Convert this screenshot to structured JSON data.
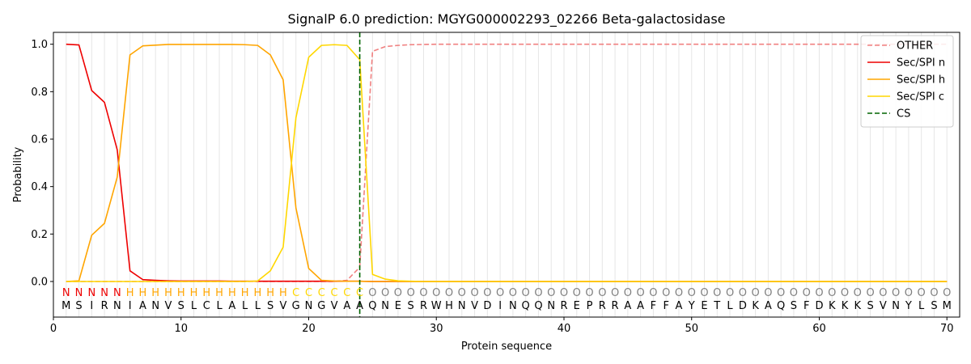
{
  "chart_data": {
    "type": "line",
    "title": "SignalP 6.0 prediction: MGYG000002293_02266 Beta-galactosidase",
    "xlabel": "Protein sequence",
    "ylabel": "Probability",
    "xlim": [
      0,
      71
    ],
    "ylim": [
      -0.15,
      1.05
    ],
    "xticks": [
      0,
      10,
      20,
      30,
      40,
      50,
      60,
      70
    ],
    "yticks": [
      0.0,
      0.2,
      0.4,
      0.6,
      0.8,
      1.0
    ],
    "ytick_labels": [
      "0.0",
      "0.2",
      "0.4",
      "0.6",
      "0.8",
      "1.0"
    ],
    "grid": "vertical lines at each residue",
    "legend_position": "top-right",
    "sequence": [
      "M",
      "S",
      "I",
      "R",
      "N",
      "I",
      "A",
      "N",
      "V",
      "S",
      "L",
      "C",
      "L",
      "A",
      "L",
      "L",
      "S",
      "V",
      "G",
      "N",
      "G",
      "V",
      "A",
      "A",
      "Q",
      "N",
      "E",
      "S",
      "R",
      "W",
      "H",
      "N",
      "V",
      "D",
      "I",
      "N",
      "Q",
      "Q",
      "N",
      "R",
      "E",
      "P",
      "R",
      "R",
      "A",
      "A",
      "F",
      "F",
      "A",
      "Y",
      "E",
      "T",
      "L",
      "D",
      "K",
      "A",
      "Q",
      "S",
      "F",
      "D",
      "K",
      "K",
      "K",
      "S",
      "V",
      "N",
      "Y",
      "L",
      "S",
      "M"
    ],
    "region_labels": [
      "N",
      "N",
      "N",
      "N",
      "N",
      "H",
      "H",
      "H",
      "H",
      "H",
      "H",
      "H",
      "H",
      "H",
      "H",
      "H",
      "H",
      "H",
      "C",
      "C",
      "C",
      "C",
      "C",
      "C",
      "O",
      "O",
      "O",
      "O",
      "O",
      "O",
      "O",
      "O",
      "O",
      "O",
      "O",
      "O",
      "O",
      "O",
      "O",
      "O",
      "O",
      "O",
      "O",
      "O",
      "O",
      "O",
      "O",
      "O",
      "O",
      "O",
      "O",
      "O",
      "O",
      "O",
      "O",
      "O",
      "O",
      "O",
      "O",
      "O",
      "O",
      "O",
      "O",
      "O",
      "O",
      "O",
      "O",
      "O",
      "O",
      "O"
    ],
    "region_colors": {
      "N": "#ee0000",
      "H": "#ffa500",
      "C": "#ffd700",
      "O": "#808080"
    },
    "cleavage_site": 24,
    "series": [
      {
        "name": "OTHER",
        "color": "#f08080",
        "style": "dashed",
        "values": [
          0,
          0,
          0,
          0,
          0,
          0,
          0,
          0,
          0,
          0,
          0,
          0,
          0,
          0,
          0,
          0,
          0,
          0,
          0,
          0,
          0,
          0,
          0.005,
          0.06,
          0.97,
          0.99,
          0.995,
          0.998,
          0.999,
          1,
          1,
          1,
          1,
          1,
          1,
          1,
          1,
          1,
          1,
          1,
          1,
          1,
          1,
          1,
          1,
          1,
          1,
          1,
          1,
          1,
          1,
          1,
          1,
          1,
          1,
          1,
          1,
          1,
          1,
          1,
          1,
          1,
          1,
          1,
          1,
          1,
          1,
          1,
          1,
          1
        ]
      },
      {
        "name": "Sec/SPI n",
        "color": "#ee0000",
        "style": "solid",
        "values": [
          1.0,
          0.997,
          0.805,
          0.755,
          0.555,
          0.045,
          0.008,
          0.005,
          0.003,
          0.002,
          0.002,
          0.002,
          0.002,
          0.001,
          0.001,
          0.001,
          0.001,
          0.001,
          0.001,
          0.001,
          0.001,
          0.001,
          0.001,
          0.001,
          0,
          0,
          0,
          0,
          0,
          0,
          0,
          0,
          0,
          0,
          0,
          0,
          0,
          0,
          0,
          0,
          0,
          0,
          0,
          0,
          0,
          0,
          0,
          0,
          0,
          0,
          0,
          0,
          0,
          0,
          0,
          0,
          0,
          0,
          0,
          0,
          0,
          0,
          0,
          0,
          0,
          0,
          0,
          0,
          0,
          0
        ]
      },
      {
        "name": "Sec/SPI h",
        "color": "#ffa500",
        "style": "solid",
        "values": [
          0,
          0.003,
          0.195,
          0.245,
          0.44,
          0.955,
          0.993,
          0.996,
          0.999,
          0.999,
          0.999,
          0.999,
          0.999,
          0.999,
          0.998,
          0.995,
          0.955,
          0.85,
          0.31,
          0.055,
          0.005,
          0.002,
          0.001,
          0.001,
          0,
          0,
          0,
          0,
          0,
          0,
          0,
          0,
          0,
          0,
          0,
          0,
          0,
          0,
          0,
          0,
          0,
          0,
          0,
          0,
          0,
          0,
          0,
          0,
          0,
          0,
          0,
          0,
          0,
          0,
          0,
          0,
          0,
          0,
          0,
          0,
          0,
          0,
          0,
          0,
          0,
          0,
          0,
          0,
          0,
          0
        ]
      },
      {
        "name": "Sec/SPI c",
        "color": "#ffd700",
        "style": "solid",
        "values": [
          0,
          0,
          0,
          0,
          0,
          0,
          0,
          0,
          0,
          0,
          0,
          0,
          0,
          0,
          0,
          0.002,
          0.045,
          0.145,
          0.69,
          0.945,
          0.995,
          0.998,
          0.995,
          0.935,
          0.03,
          0.01,
          0.003,
          0.001,
          0,
          0,
          0,
          0,
          0,
          0,
          0,
          0,
          0,
          0,
          0,
          0,
          0,
          0,
          0,
          0,
          0,
          0,
          0,
          0,
          0,
          0,
          0,
          0,
          0,
          0,
          0,
          0,
          0,
          0,
          0,
          0,
          0,
          0,
          0,
          0,
          0,
          0,
          0,
          0,
          0,
          0
        ]
      }
    ],
    "legend": [
      {
        "name": "OTHER",
        "color": "#f08080",
        "style": "dashed"
      },
      {
        "name": "Sec/SPI n",
        "color": "#ee0000",
        "style": "solid"
      },
      {
        "name": "Sec/SPI h",
        "color": "#ffa500",
        "style": "solid"
      },
      {
        "name": "Sec/SPI c",
        "color": "#ffd700",
        "style": "solid"
      },
      {
        "name": "CS",
        "color": "#006400",
        "style": "dashed"
      }
    ]
  }
}
